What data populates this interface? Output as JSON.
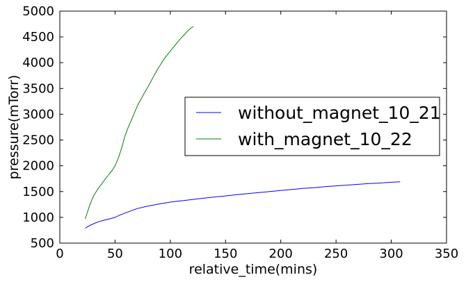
{
  "chart_data": {
    "type": "line",
    "xlabel": "relative_time(mins)",
    "ylabel": "pressure(mTorr)",
    "xlim": [
      0,
      350
    ],
    "ylim": [
      500,
      5000
    ],
    "x_ticks": [
      0,
      50,
      100,
      150,
      200,
      250,
      300,
      350
    ],
    "y_ticks": [
      500,
      1000,
      1500,
      2000,
      2500,
      3000,
      3500,
      4000,
      4500,
      5000
    ],
    "grid": false,
    "legend_position": "center-right",
    "series": [
      {
        "name": "without_magnet_10_21",
        "color": "#0000ff",
        "x": [
          23,
          25,
          28,
          32,
          36,
          40,
          45,
          50,
          55,
          60,
          65,
          70,
          80,
          90,
          100,
          110,
          120,
          130,
          140,
          150,
          160,
          170,
          180,
          190,
          200,
          210,
          220,
          230,
          240,
          250,
          260,
          270,
          280,
          290,
          300,
          308
        ],
        "y": [
          790,
          815,
          850,
          890,
          920,
          945,
          970,
          1000,
          1050,
          1090,
          1130,
          1170,
          1220,
          1260,
          1295,
          1320,
          1345,
          1370,
          1395,
          1415,
          1440,
          1460,
          1480,
          1500,
          1520,
          1540,
          1560,
          1575,
          1595,
          1610,
          1625,
          1640,
          1655,
          1665,
          1680,
          1690
        ]
      },
      {
        "name": "with_magnet_10_22",
        "color": "#008000",
        "x": [
          23,
          25,
          27,
          29,
          31,
          33,
          35,
          38,
          41,
          44,
          47,
          50,
          53,
          56,
          59,
          62,
          65,
          68,
          71,
          74,
          77,
          80,
          83,
          86,
          89,
          92,
          95,
          98,
          101,
          104,
          107,
          110,
          113,
          116,
          119,
          121
        ],
        "y": [
          970,
          1100,
          1230,
          1340,
          1430,
          1500,
          1570,
          1650,
          1740,
          1820,
          1900,
          2000,
          2150,
          2350,
          2580,
          2750,
          2900,
          3050,
          3200,
          3310,
          3430,
          3540,
          3660,
          3780,
          3890,
          3990,
          4090,
          4170,
          4250,
          4330,
          4410,
          4480,
          4550,
          4620,
          4680,
          4700
        ]
      }
    ]
  }
}
